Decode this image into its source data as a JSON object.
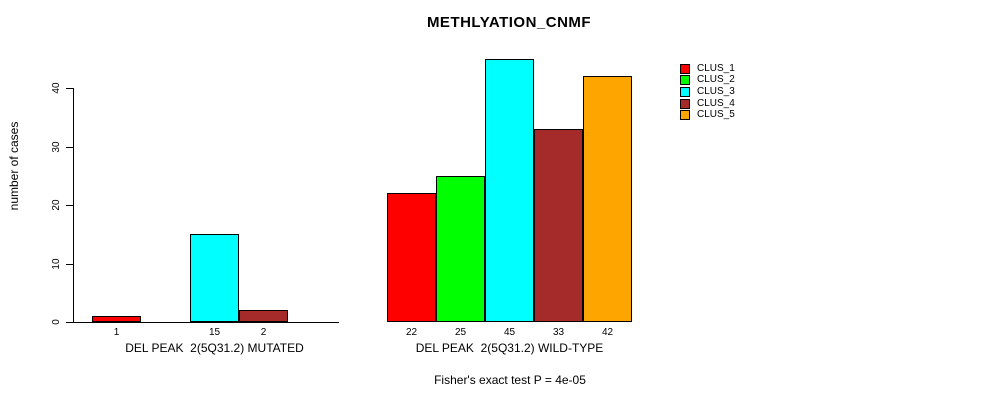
{
  "title": "METHLYATION_CNMF",
  "y_axis": {
    "label": "number of cases",
    "ticks": [
      0,
      10,
      20,
      30,
      40
    ]
  },
  "footer": "Fisher's exact test P = 4e-05",
  "legend": {
    "entries": [
      {
        "label": "CLUS_1",
        "color": "#ff0000"
      },
      {
        "label": "CLUS_2",
        "color": "#00ff00"
      },
      {
        "label": "CLUS_3",
        "color": "#00ffff"
      },
      {
        "label": "CLUS_4",
        "color": "#a52a2a"
      },
      {
        "label": "CLUS_5",
        "color": "#ffa500"
      }
    ]
  },
  "chart_data": {
    "type": "bar",
    "title": "METHLYATION_CNMF",
    "ylabel": "number of cases",
    "ylim": [
      0,
      45
    ],
    "yticks": [
      0,
      10,
      20,
      30,
      40
    ],
    "grid": false,
    "legend_position": "right",
    "series_names": [
      "CLUS_1",
      "CLUS_2",
      "CLUS_3",
      "CLUS_4",
      "CLUS_5"
    ],
    "series_colors": [
      "#ff0000",
      "#00ff00",
      "#00ffff",
      "#a52a2a",
      "#ffa500"
    ],
    "groups": [
      {
        "label": "DEL PEAK  2(5Q31.2) MUTATED",
        "values": [
          1,
          0,
          15,
          2,
          0
        ]
      },
      {
        "label": "DEL PEAK  2(5Q31.2) WILD-TYPE",
        "values": [
          22,
          25,
          45,
          33,
          42
        ]
      }
    ],
    "bar_labels_shown_only_for_nonzero": true,
    "annotation": "Fisher's exact test P = 4e-05"
  }
}
